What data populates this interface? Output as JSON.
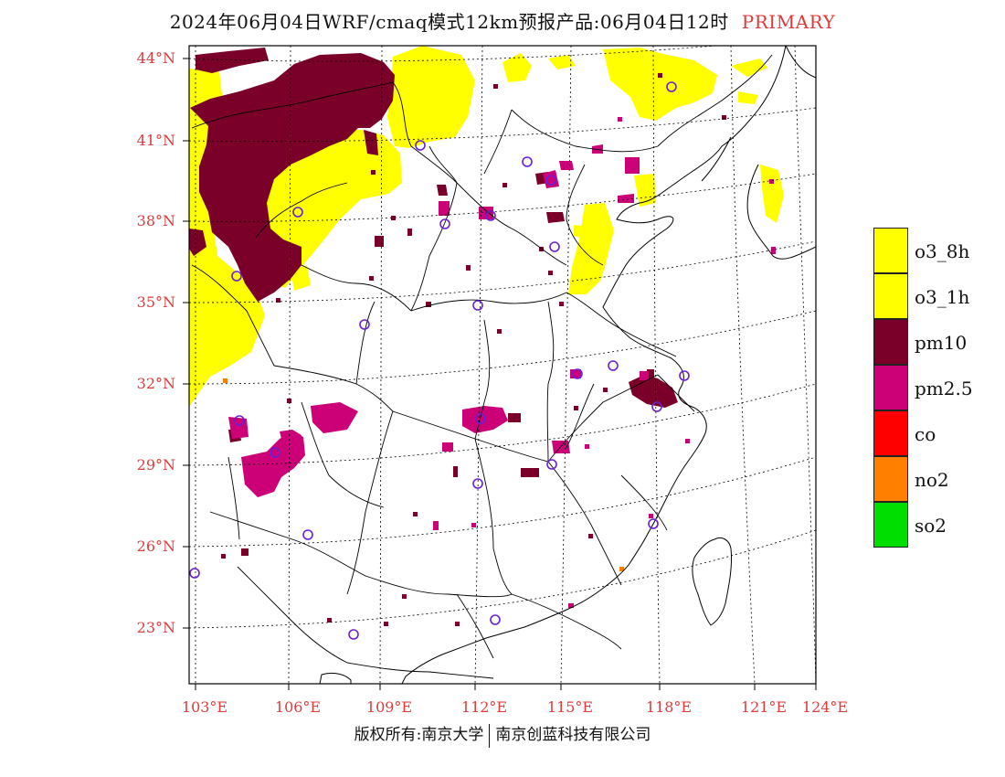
{
  "header": {
    "title": "2024年06月04日WRF/cmaq模式12km预报产品:06月04日12时",
    "tag": "PRIMARY"
  },
  "map": {
    "lat_labels": [
      "44°N",
      "41°N",
      "38°N",
      "35°N",
      "32°N",
      "29°N",
      "26°N",
      "23°N"
    ],
    "lon_labels": [
      "103°E",
      "106°E",
      "109°E",
      "112°E",
      "115°E",
      "118°E",
      "121°E",
      "124°E"
    ],
    "lat_values": [
      44,
      41,
      38,
      35,
      32,
      29,
      26,
      23
    ],
    "lon_values": [
      103,
      106,
      109,
      112,
      115,
      118,
      121,
      124
    ],
    "region": "China East/Central",
    "primary_pollutant_regions": [
      {
        "pollutant": "pm10",
        "area": "northwest Inner Mongolia / Ningxia"
      },
      {
        "pollutant": "o3_8h",
        "area": "Inner Mongolia / north China / Shandong"
      },
      {
        "pollutant": "pm2.5",
        "area": "Sichuan basin / Hubei / Jiangxi"
      },
      {
        "pollutant": "pm10",
        "area": "Shanghai / Jiangsu coast"
      }
    ],
    "station_marker_color": "#6a1fd6"
  },
  "legend": {
    "items": [
      {
        "label": "o3_8h",
        "color": "#ffff00"
      },
      {
        "label": "o3_1h",
        "color": "#ffff00"
      },
      {
        "label": "pm10",
        "color": "#7a0029"
      },
      {
        "label": "pm2.5",
        "color": "#cc0077"
      },
      {
        "label": "co",
        "color": "#ff0000"
      },
      {
        "label": "no2",
        "color": "#ff7f00"
      },
      {
        "label": "so2",
        "color": "#00dd00"
      }
    ]
  },
  "footer": {
    "left": "版权所有:南京大学",
    "right": "南京创蓝科技有限公司"
  }
}
